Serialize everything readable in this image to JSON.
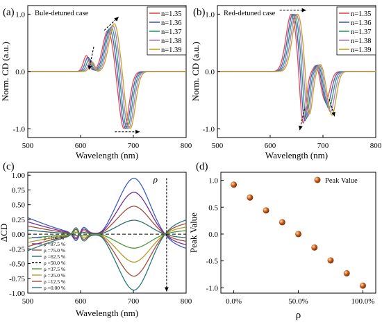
{
  "colors": {
    "n": [
      "#e8474a",
      "#4a55c4",
      "#2a9a6a",
      "#a678d8",
      "#c8a020"
    ],
    "rho": [
      "#3c5dc4",
      "#7a2e8c",
      "#a44c3a",
      "#2e6e6e",
      "#000000",
      "#4a9a3a",
      "#b89a2a",
      "#a44c3a",
      "#2a7a7a"
    ],
    "bead": "#c85a18",
    "arrow": "#000000"
  },
  "chart_data": [
    {
      "panel_label": "(a)",
      "type": "line",
      "annotation": "Bule-detuned case",
      "xlabel": "Wavelength (nm)",
      "ylabel": "Norm. CD (a.u.)",
      "xlim": [
        500,
        800
      ],
      "ylim": [
        -1.15,
        1.15
      ],
      "xticks": [
        "500",
        "600",
        "700",
        "800"
      ],
      "yticks": [
        "1.0",
        "0.0",
        "-1.0"
      ],
      "legend_position": "top-right",
      "series": [
        {
          "name": "n=1.35",
          "peak_x": 652,
          "peak_y": 0.72,
          "dip_x": 682,
          "dip_y": -1.0,
          "shoulder_x": 612,
          "shoulder_y": 0.3
        },
        {
          "name": "n=1.36",
          "peak_x": 655,
          "peak_y": 0.75,
          "dip_x": 685,
          "dip_y": -1.0,
          "shoulder_x": 615,
          "shoulder_y": 0.27
        },
        {
          "name": "n=1.37",
          "peak_x": 658,
          "peak_y": 0.78,
          "dip_x": 688,
          "dip_y": -1.0,
          "shoulder_x": 618,
          "shoulder_y": 0.24
        },
        {
          "name": "n=1.38",
          "peak_x": 661,
          "peak_y": 0.81,
          "dip_x": 691,
          "dip_y": -1.0,
          "shoulder_x": 621,
          "shoulder_y": 0.21
        },
        {
          "name": "n=1.39",
          "peak_x": 664,
          "peak_y": 0.84,
          "dip_x": 694,
          "dip_y": -1.0,
          "shoulder_x": 624,
          "shoulder_y": 0.18
        }
      ]
    },
    {
      "panel_label": "(b)",
      "type": "line",
      "annotation": "Red-detuned case",
      "xlabel": "Wavelength (nm)",
      "ylabel": "Norm. CD (a.u.)",
      "xlim": [
        500,
        800
      ],
      "ylim": [
        -1.15,
        1.15
      ],
      "xticks": [
        "500",
        "600",
        "700",
        "800"
      ],
      "yticks": [
        "1.0",
        "0.0",
        "-1.0"
      ],
      "legend_position": "top-right",
      "series": [
        {
          "name": "n=1.35",
          "peak_x": 640,
          "peak_y": 1.0,
          "dip1_x": 662,
          "dip1_y": -0.98,
          "mid_x": 688,
          "mid_y": -0.24,
          "dip2_x": 705,
          "dip2_y": -0.52
        },
        {
          "name": "n=1.36",
          "peak_x": 643,
          "peak_y": 1.0,
          "dip1_x": 665,
          "dip1_y": -0.94,
          "mid_x": 690,
          "mid_y": -0.24,
          "dip2_x": 708,
          "dip2_y": -0.58
        },
        {
          "name": "n=1.37",
          "peak_x": 646,
          "peak_y": 1.0,
          "dip1_x": 668,
          "dip1_y": -0.9,
          "mid_x": 692,
          "mid_y": -0.24,
          "dip2_x": 711,
          "dip2_y": -0.64
        },
        {
          "name": "n=1.38",
          "peak_x": 649,
          "peak_y": 1.0,
          "dip1_x": 671,
          "dip1_y": -0.86,
          "mid_x": 694,
          "mid_y": -0.24,
          "dip2_x": 714,
          "dip2_y": -0.7
        },
        {
          "name": "n=1.39",
          "peak_x": 652,
          "peak_y": 1.0,
          "dip1_x": 674,
          "dip1_y": -0.82,
          "mid_x": 696,
          "mid_y": -0.24,
          "dip2_x": 717,
          "dip2_y": -0.76
        }
      ]
    },
    {
      "panel_label": "(c)",
      "type": "line",
      "annotation": "ρ",
      "xlabel": "Wavelength (nm)",
      "ylabel": "ΔCD",
      "xlim": [
        500,
        800
      ],
      "ylim": [
        -1.0,
        1.05
      ],
      "xticks": [
        "500",
        "600",
        "700",
        "800"
      ],
      "yticks": [
        "1.00",
        "0.75",
        "0.50",
        "0.25",
        "0.00",
        "-0.25",
        "-0.50",
        "-0.75",
        "-1.00"
      ],
      "legend_position": "bottom-left",
      "series": [
        {
          "name": "ρ =100 %",
          "p": 1.0
        },
        {
          "name": "ρ =87.5 %",
          "p": 0.75
        },
        {
          "name": "ρ =75.0 %",
          "p": 0.5
        },
        {
          "name": "ρ =62.5 %",
          "p": 0.25
        },
        {
          "name": "ρ =50.0 %",
          "p": 0.0
        },
        {
          "name": "ρ =37.5 %",
          "p": -0.25
        },
        {
          "name": "ρ =25.0 %",
          "p": -0.5
        },
        {
          "name": "ρ =12.5 %",
          "p": -0.75
        },
        {
          "name": "ρ =0.00 %",
          "p": -1.0
        }
      ]
    },
    {
      "panel_label": "(d)",
      "type": "scatter",
      "xlabel": "ρ",
      "ylabel": "Peak Value",
      "xlim": [
        -0.1,
        1.1
      ],
      "ylim": [
        -1.1,
        1.15
      ],
      "xticks": [
        "0.0%",
        "50.0%",
        "100.0%"
      ],
      "yticks": [
        "1.0",
        "0.5",
        "0.0",
        "-0.5",
        "-1.0"
      ],
      "legend_position": "top-right",
      "series": [
        {
          "name": "Peak Value",
          "x": [
            0.0,
            0.125,
            0.25,
            0.375,
            0.5,
            0.625,
            0.75,
            0.875,
            1.0
          ],
          "y": [
            0.92,
            0.68,
            0.44,
            0.22,
            0.0,
            -0.25,
            -0.49,
            -0.73,
            -0.96
          ]
        }
      ]
    }
  ]
}
